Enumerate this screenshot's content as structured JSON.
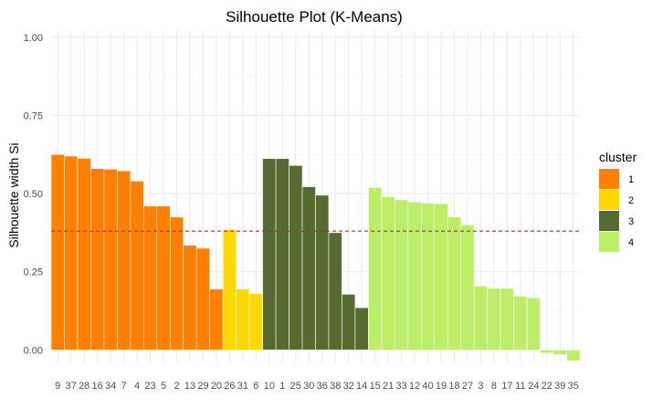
{
  "chart_data": {
    "type": "bar",
    "title": "Silhouette Plot (K-Means)",
    "ylabel": "Silhouette width Si",
    "xlabel": "",
    "ylim": [
      -0.04,
      1.02
    ],
    "yticks": [
      0.0,
      0.25,
      0.5,
      0.75,
      1.0
    ],
    "ytick_labels": [
      "0.00",
      "0.25",
      "0.50",
      "0.75",
      "1.00"
    ],
    "average_silhouette": 0.38,
    "grid": true,
    "legend": {
      "title": "cluster",
      "position": "right",
      "entries": [
        {
          "label": "1",
          "color": "#FF7F00"
        },
        {
          "label": "2",
          "color": "#FFD700"
        },
        {
          "label": "3",
          "color": "#556B2F"
        },
        {
          "label": "4",
          "color": "#BDEE68"
        }
      ]
    },
    "bars": [
      {
        "id": "9",
        "cluster": "1",
        "value": 0.625
      },
      {
        "id": "37",
        "cluster": "1",
        "value": 0.62
      },
      {
        "id": "28",
        "cluster": "1",
        "value": 0.613
      },
      {
        "id": "16",
        "cluster": "1",
        "value": 0.58
      },
      {
        "id": "34",
        "cluster": "1",
        "value": 0.578
      },
      {
        "id": "7",
        "cluster": "1",
        "value": 0.573
      },
      {
        "id": "4",
        "cluster": "1",
        "value": 0.54
      },
      {
        "id": "23",
        "cluster": "1",
        "value": 0.46
      },
      {
        "id": "5",
        "cluster": "1",
        "value": 0.46
      },
      {
        "id": "2",
        "cluster": "1",
        "value": 0.425
      },
      {
        "id": "13",
        "cluster": "1",
        "value": 0.335
      },
      {
        "id": "29",
        "cluster": "1",
        "value": 0.325
      },
      {
        "id": "20",
        "cluster": "1",
        "value": 0.195
      },
      {
        "id": "26",
        "cluster": "2",
        "value": 0.385
      },
      {
        "id": "31",
        "cluster": "2",
        "value": 0.195
      },
      {
        "id": "6",
        "cluster": "2",
        "value": 0.18
      },
      {
        "id": "10",
        "cluster": "3",
        "value": 0.612
      },
      {
        "id": "1",
        "cluster": "3",
        "value": 0.612
      },
      {
        "id": "25",
        "cluster": "3",
        "value": 0.59
      },
      {
        "id": "30",
        "cluster": "3",
        "value": 0.522
      },
      {
        "id": "36",
        "cluster": "3",
        "value": 0.495
      },
      {
        "id": "38",
        "cluster": "3",
        "value": 0.375
      },
      {
        "id": "32",
        "cluster": "3",
        "value": 0.178
      },
      {
        "id": "14",
        "cluster": "3",
        "value": 0.135
      },
      {
        "id": "15",
        "cluster": "4",
        "value": 0.52
      },
      {
        "id": "21",
        "cluster": "4",
        "value": 0.49
      },
      {
        "id": "33",
        "cluster": "4",
        "value": 0.48
      },
      {
        "id": "12",
        "cluster": "4",
        "value": 0.473
      },
      {
        "id": "40",
        "cluster": "4",
        "value": 0.47
      },
      {
        "id": "19",
        "cluster": "4",
        "value": 0.468
      },
      {
        "id": "18",
        "cluster": "4",
        "value": 0.425
      },
      {
        "id": "27",
        "cluster": "4",
        "value": 0.4
      },
      {
        "id": "3",
        "cluster": "4",
        "value": 0.205
      },
      {
        "id": "8",
        "cluster": "4",
        "value": 0.197
      },
      {
        "id": "17",
        "cluster": "4",
        "value": 0.197
      },
      {
        "id": "11",
        "cluster": "4",
        "value": 0.172
      },
      {
        "id": "24",
        "cluster": "4",
        "value": 0.167
      },
      {
        "id": "22",
        "cluster": "4",
        "value": -0.01
      },
      {
        "id": "39",
        "cluster": "4",
        "value": -0.015
      },
      {
        "id": "35",
        "cluster": "4",
        "value": -0.035
      }
    ]
  }
}
